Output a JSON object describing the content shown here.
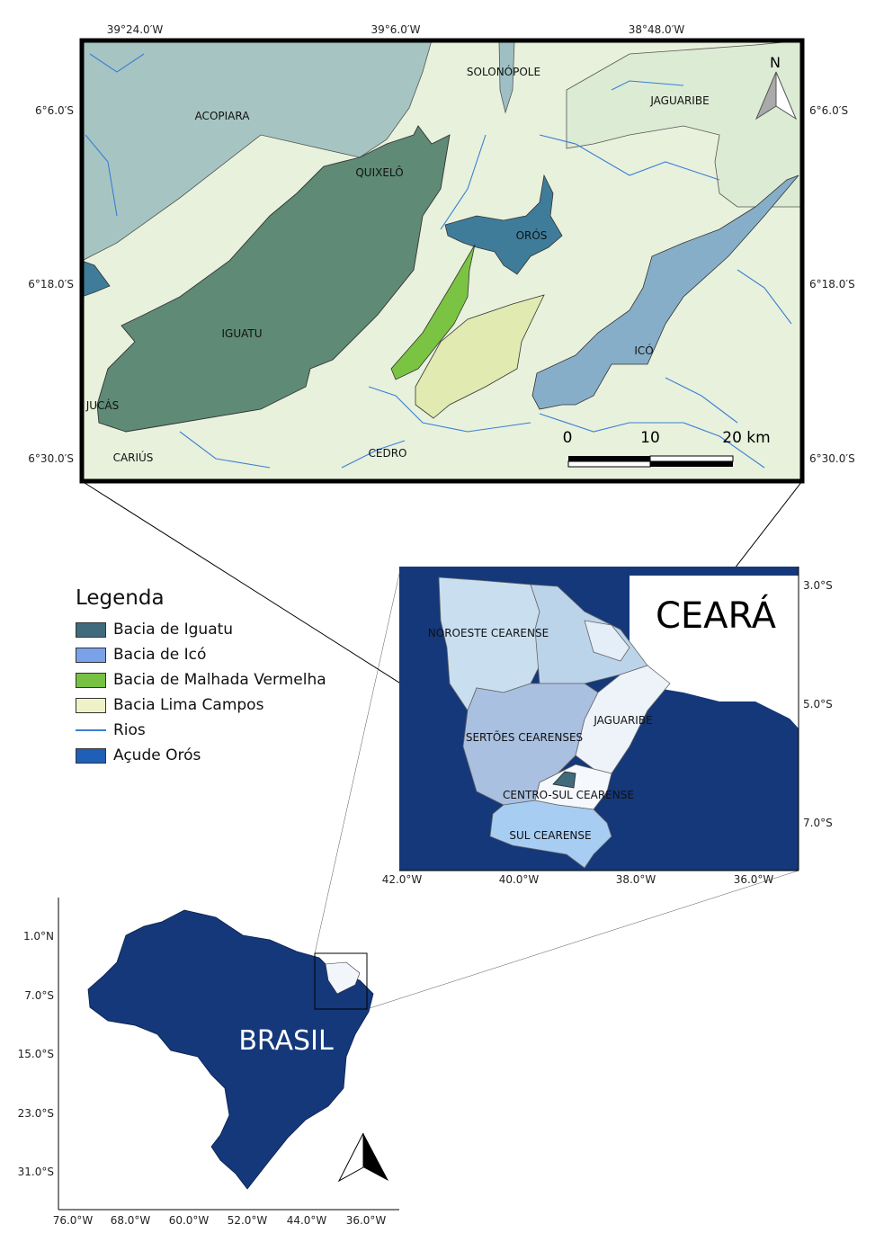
{
  "inset": {
    "top_ticks": [
      "39°24.0′W",
      "39°6.0′W",
      "38°48.0′W"
    ],
    "left_ticks": [
      "6°6.0′S",
      "6°18.0′S",
      "6°30.0′S"
    ],
    "right_ticks": [
      "6°6.0′S",
      "6°18.0′S",
      "6°30.0′S"
    ],
    "places": [
      "SOLONÓPOLE",
      "JAGUARIBE",
      "ACOPIARA",
      "QUIXELÔ",
      "ORÓS",
      "IGUATU",
      "ICÓ",
      "JUCÁS",
      "CARIÚS",
      "CEDRO"
    ],
    "scale_labels": [
      "0",
      "10",
      "20 km"
    ],
    "north": "N"
  },
  "legend": {
    "title": "Legenda",
    "items": [
      {
        "label": "Bacia de Iguatu",
        "color": "#3f6b7c",
        "kind": "fill"
      },
      {
        "label": "Bacia de Icó",
        "color": "#7aa2e8",
        "kind": "fill"
      },
      {
        "label": "Bacia de Malhada Vermelha",
        "color": "#77c142",
        "kind": "fill"
      },
      {
        "label": "Bacia Lima Campos",
        "color": "#eef2c6",
        "kind": "fill"
      },
      {
        "label": "Rios",
        "color": "#3a7fd4",
        "kind": "line"
      },
      {
        "label": "Açude Orós",
        "color": "#1f5fb8",
        "kind": "fill"
      }
    ]
  },
  "ceara": {
    "title": "CEARÁ",
    "lat_ticks": [
      "3.0°S",
      "5.0°S",
      "7.0°S"
    ],
    "lon_ticks": [
      "42.0°W",
      "40.0°W",
      "38.0°W",
      "36.0°W"
    ],
    "regions": [
      "NOROESTE CEARENSE",
      "SERTÕES CEARENSES",
      "JAGUARIBE",
      "CENTRO-SUL CEARENSE",
      "SUL CEARENSE"
    ]
  },
  "brasil": {
    "title": "BRASIL",
    "lat_ticks": [
      "1.0°N",
      "7.0°S",
      "15.0°S",
      "23.0°S",
      "31.0°S"
    ],
    "lon_ticks": [
      "76.0°W",
      "68.0°W",
      "60.0°W",
      "52.0°W",
      "44.0°W",
      "36.0°W"
    ]
  },
  "colors": {
    "ocean": "#14387a",
    "brazil": "#14387a",
    "iguatu": "#5f8a76",
    "acopiara": "#a6c5c2",
    "land_light": "#e3efd8",
    "oros": "#3f7c9a",
    "ico": "#86aec9",
    "malhada": "#7bc443",
    "lima": "#e1eab0",
    "river": "#3a7fd4"
  }
}
